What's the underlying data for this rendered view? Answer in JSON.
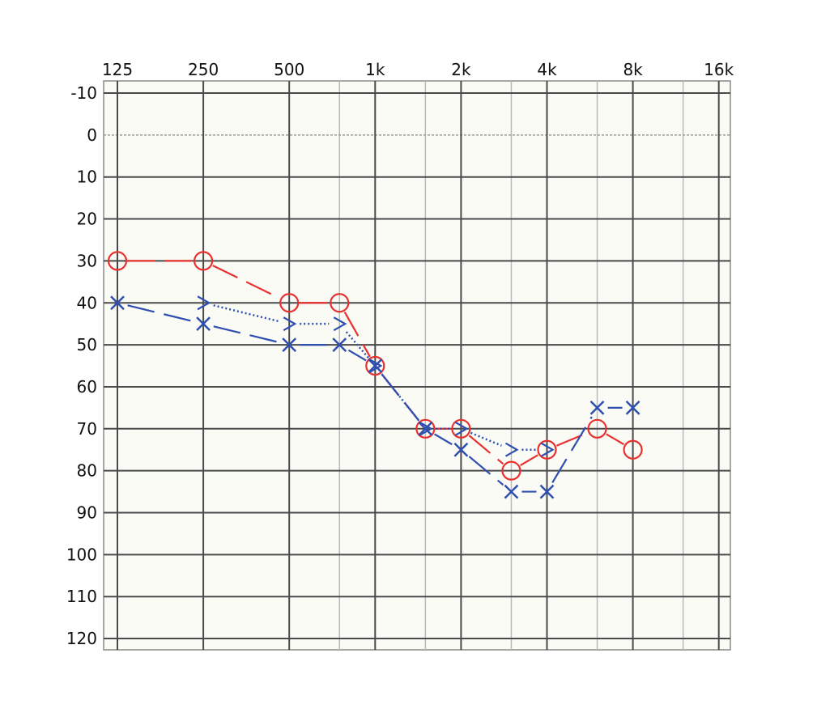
{
  "chart_data": {
    "type": "line",
    "x_scale": "log2",
    "y_inverted": true,
    "grid": true,
    "legend": "none",
    "x_ticks": [
      {
        "value": 125,
        "label": "125"
      },
      {
        "value": 250,
        "label": "250"
      },
      {
        "value": 500,
        "label": "500"
      },
      {
        "value": 1000,
        "label": "1k"
      },
      {
        "value": 2000,
        "label": "2k"
      },
      {
        "value": 4000,
        "label": "4k"
      },
      {
        "value": 8000,
        "label": "8k"
      },
      {
        "value": 16000,
        "label": "16k"
      }
    ],
    "x_minor_grid": [
      750,
      1500,
      3000,
      6000,
      12000
    ],
    "y_ticks": [
      -10,
      0,
      10,
      20,
      30,
      40,
      50,
      60,
      70,
      80,
      90,
      100,
      110,
      120
    ],
    "xlim": [
      125,
      16000
    ],
    "ylim": [
      -10,
      120
    ],
    "colors": {
      "right_ear": "#e8312f",
      "left_ear": "#2f4fb0",
      "grid_major": "#4a4a4a",
      "grid_minor": "#b9b9b9",
      "plot_bg": "#fbfbf5"
    },
    "series": [
      {
        "marker": "circle",
        "color": "#e8312f",
        "line": "dashed-long",
        "points": [
          {
            "x": 125,
            "y": 30
          },
          {
            "x": 250,
            "y": 30
          },
          {
            "x": 500,
            "y": 40
          },
          {
            "x": 750,
            "y": 40
          },
          {
            "x": 1000,
            "y": 55
          },
          {
            "x": 1500,
            "y": 70
          },
          {
            "x": 2000,
            "y": 70
          },
          {
            "x": 3000,
            "y": 80
          },
          {
            "x": 4000,
            "y": 75
          },
          {
            "x": 6000,
            "y": 70
          },
          {
            "x": 8000,
            "y": 75
          }
        ]
      },
      {
        "marker": "cross",
        "color": "#2f4fb0",
        "line": "dashed-long",
        "points": [
          {
            "x": 125,
            "y": 40
          },
          {
            "x": 250,
            "y": 45
          },
          {
            "x": 500,
            "y": 50
          },
          {
            "x": 750,
            "y": 50
          },
          {
            "x": 1000,
            "y": 55
          },
          {
            "x": 1500,
            "y": 70
          },
          {
            "x": 2000,
            "y": 75
          },
          {
            "x": 3000,
            "y": 85
          },
          {
            "x": 4000,
            "y": 85
          },
          {
            "x": 6000,
            "y": 65
          },
          {
            "x": 8000,
            "y": 65
          }
        ]
      },
      {
        "marker": "bracket-right",
        "color": "#2f4fb0",
        "line": "dotted",
        "points": [
          {
            "x": 250,
            "y": 40
          },
          {
            "x": 500,
            "y": 45
          },
          {
            "x": 750,
            "y": 45
          },
          {
            "x": 1000,
            "y": 55
          },
          {
            "x": 1500,
            "y": 70
          },
          {
            "x": 2000,
            "y": 70
          },
          {
            "x": 3000,
            "y": 75
          },
          {
            "x": 4000,
            "y": 75
          }
        ]
      }
    ]
  }
}
